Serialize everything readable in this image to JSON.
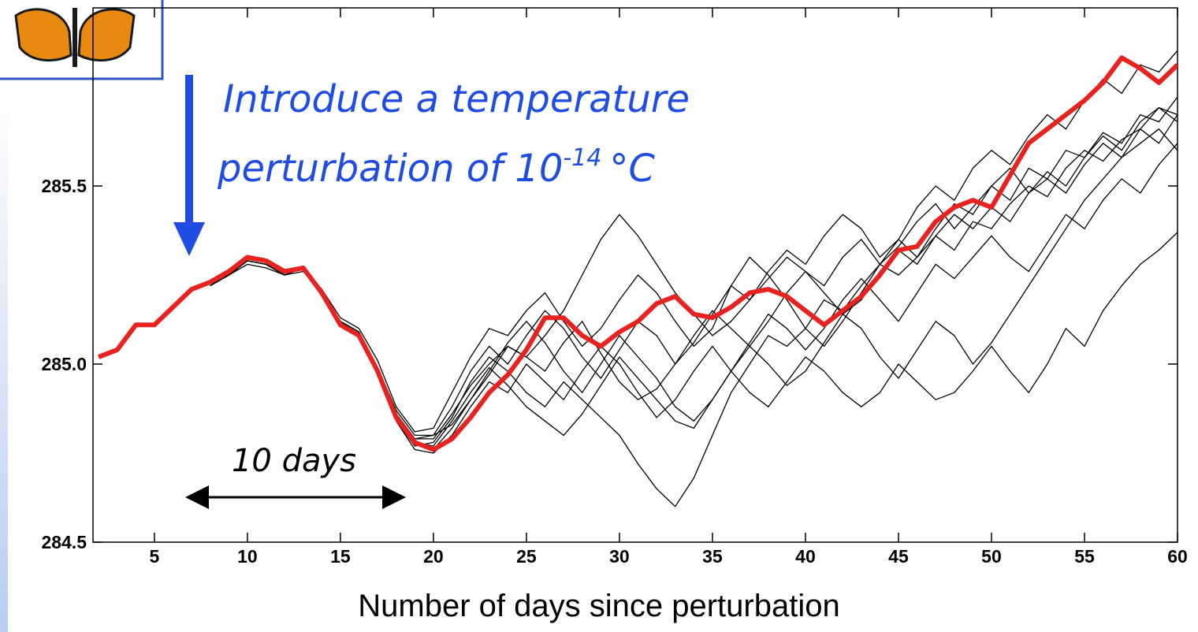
{
  "chart_data": {
    "type": "line",
    "xlabel": "Number of days since perturbation",
    "annotation": {
      "line1": "Introduce a temperature",
      "line2": "perturbation of 10",
      "superscript": "-14",
      "unit": "°C"
    },
    "span_label": "10 days",
    "xlim": [
      1.7,
      60
    ],
    "ylim": [
      284.5,
      286.0
    ],
    "xticks": [
      5,
      10,
      15,
      20,
      25,
      30,
      35,
      40,
      45,
      50,
      55,
      60
    ],
    "yticks": [
      {
        "value": 284.5,
        "label": "284.5"
      },
      {
        "value": 285,
        "label": "285.0"
      },
      {
        "value": 285.5,
        "label": "285.5"
      }
    ],
    "x": [
      2,
      3,
      4,
      5,
      6,
      7,
      8,
      9,
      10,
      11,
      12,
      13,
      14,
      15,
      16,
      17,
      18,
      19,
      20,
      21,
      22,
      23,
      24,
      25,
      26,
      27,
      28,
      29,
      30,
      31,
      32,
      33,
      34,
      35,
      36,
      37,
      38,
      39,
      40,
      41,
      42,
      43,
      44,
      45,
      46,
      47,
      48,
      49,
      50,
      51,
      52,
      53,
      54,
      55,
      56,
      57,
      58,
      59,
      60
    ],
    "series": [
      {
        "color": "#000000",
        "values": [
          null,
          null,
          null,
          null,
          null,
          null,
          285.22,
          285.25,
          285.29,
          285.28,
          285.25,
          285.27,
          285.2,
          285.12,
          285.09,
          284.99,
          284.86,
          284.79,
          284.8,
          284.83,
          284.9,
          284.97,
          285.05,
          285.02,
          284.98,
          285.06,
          285.12,
          285.03,
          284.95,
          284.9,
          284.93,
          285.0,
          285.08,
          285.15,
          285.1,
          285.05,
          285.12,
          285.2,
          285.26,
          285.22,
          285.3,
          285.35,
          285.28,
          285.33,
          285.4,
          285.45,
          285.38,
          285.44,
          285.5,
          285.55,
          285.48,
          285.52,
          285.6,
          285.58,
          285.65,
          285.62,
          285.7,
          285.68,
          285.75
        ]
      },
      {
        "color": "#000000",
        "values": [
          null,
          null,
          null,
          null,
          null,
          null,
          285.22,
          285.26,
          285.29,
          285.28,
          285.26,
          285.27,
          285.19,
          285.11,
          285.08,
          284.98,
          284.84,
          284.77,
          284.78,
          284.85,
          284.95,
          285.02,
          284.98,
          284.92,
          284.88,
          284.95,
          284.9,
          284.85,
          284.8,
          284.72,
          284.65,
          284.6,
          284.68,
          284.8,
          284.92,
          285.0,
          285.08,
          285.05,
          285.1,
          285.18,
          285.15,
          285.22,
          285.28,
          285.25,
          285.3,
          285.36,
          285.32,
          285.4,
          285.38,
          285.45,
          285.5,
          285.47,
          285.55,
          285.6,
          285.57,
          285.63,
          285.66,
          285.62,
          285.7
        ]
      },
      {
        "color": "#000000",
        "values": [
          null,
          null,
          null,
          null,
          null,
          null,
          285.22,
          285.25,
          285.28,
          285.27,
          285.25,
          285.27,
          285.21,
          285.13,
          285.1,
          285.01,
          284.88,
          284.81,
          284.82,
          284.92,
          285.02,
          285.1,
          285.08,
          285.15,
          285.2,
          285.12,
          285.05,
          285.1,
          285.18,
          285.25,
          285.2,
          285.12,
          285.05,
          285.1,
          285.22,
          285.3,
          285.25,
          285.18,
          285.1,
          285.05,
          285.12,
          285.2,
          285.28,
          285.35,
          285.3,
          285.38,
          285.45,
          285.42,
          285.5,
          285.46,
          285.55,
          285.52,
          285.48,
          285.56,
          285.62,
          285.58,
          285.66,
          285.72,
          285.68
        ]
      },
      {
        "color": "#000000",
        "values": [
          null,
          null,
          null,
          null,
          null,
          null,
          285.22,
          285.25,
          285.29,
          285.28,
          285.25,
          285.26,
          285.2,
          285.12,
          285.08,
          284.97,
          284.84,
          284.76,
          284.75,
          284.8,
          284.88,
          284.95,
          284.92,
          285.0,
          284.95,
          284.9,
          284.98,
          285.05,
          285.0,
          284.92,
          284.85,
          284.9,
          284.98,
          285.05,
          284.98,
          284.92,
          284.88,
          284.95,
          285.02,
          284.98,
          284.92,
          284.88,
          284.92,
          285.0,
          284.95,
          284.9,
          284.92,
          284.98,
          285.05,
          284.98,
          284.92,
          285.0,
          285.1,
          285.05,
          285.15,
          285.22,
          285.28,
          285.32,
          285.37
        ]
      },
      {
        "color": "#000000",
        "values": [
          null,
          null,
          null,
          null,
          null,
          null,
          285.22,
          285.25,
          285.29,
          285.28,
          285.25,
          285.27,
          285.2,
          285.12,
          285.09,
          284.99,
          284.87,
          284.8,
          284.8,
          284.88,
          284.98,
          285.05,
          285.0,
          285.08,
          285.15,
          285.1,
          285.02,
          284.96,
          285.04,
          285.12,
          285.08,
          285.0,
          285.06,
          285.14,
          285.22,
          285.18,
          285.26,
          285.32,
          285.28,
          285.36,
          285.42,
          285.38,
          285.3,
          285.35,
          285.44,
          285.5,
          285.46,
          285.55,
          285.6,
          285.56,
          285.64,
          285.7,
          285.66,
          285.74,
          285.8,
          285.76,
          285.84,
          285.82,
          285.88
        ]
      },
      {
        "color": "#000000",
        "values": [
          null,
          null,
          null,
          null,
          null,
          null,
          285.22,
          285.25,
          285.29,
          285.28,
          285.25,
          285.27,
          285.2,
          285.11,
          285.08,
          284.98,
          284.85,
          284.78,
          284.76,
          284.82,
          284.9,
          284.98,
          285.06,
          285.12,
          285.06,
          284.98,
          284.92,
          285.0,
          285.08,
          285.02,
          284.96,
          284.88,
          284.84,
          284.9,
          284.98,
          285.06,
          285.14,
          285.1,
          285.04,
          285.1,
          285.18,
          285.24,
          285.18,
          285.12,
          285.2,
          285.28,
          285.24,
          285.3,
          285.36,
          285.3,
          285.26,
          285.34,
          285.42,
          285.38,
          285.46,
          285.52,
          285.48,
          285.56,
          285.62
        ]
      },
      {
        "color": "#000000",
        "values": [
          null,
          null,
          null,
          null,
          null,
          null,
          285.22,
          285.25,
          285.29,
          285.28,
          285.25,
          285.27,
          285.2,
          285.12,
          285.09,
          284.99,
          284.86,
          284.79,
          284.79,
          284.86,
          284.94,
          285.0,
          285.05,
          285.02,
          285.08,
          285.15,
          285.25,
          285.35,
          285.42,
          285.36,
          285.28,
          285.2,
          285.14,
          285.08,
          285.12,
          285.18,
          285.24,
          285.3,
          285.26,
          285.2,
          285.14,
          285.18,
          285.26,
          285.32,
          285.28,
          285.36,
          285.42,
          285.38,
          285.44,
          285.4,
          285.48,
          285.54,
          285.5,
          285.58,
          285.64,
          285.6,
          285.68,
          285.72,
          285.7
        ]
      },
      {
        "color": "#000000",
        "values": [
          null,
          null,
          null,
          null,
          null,
          null,
          285.22,
          285.25,
          285.29,
          285.28,
          285.25,
          285.27,
          285.2,
          285.12,
          285.09,
          284.99,
          284.86,
          284.78,
          284.77,
          284.84,
          284.92,
          284.99,
          284.94,
          284.88,
          284.84,
          284.8,
          284.86,
          284.94,
          285.02,
          284.96,
          284.9,
          284.84,
          284.82,
          284.9,
          284.98,
          285.05,
          285.0,
          284.94,
          284.98,
          285.06,
          285.14,
          285.1,
          285.02,
          284.96,
          285.04,
          285.12,
          285.08,
          285.0,
          285.06,
          285.14,
          285.22,
          285.3,
          285.38,
          285.46,
          285.52,
          285.58,
          285.62,
          285.66,
          285.6
        ]
      },
      {
        "color": "#e8231f",
        "values": [
          285.02,
          285.04,
          285.11,
          285.11,
          285.16,
          285.21,
          285.23,
          285.26,
          285.3,
          285.29,
          285.26,
          285.27,
          285.2,
          285.11,
          285.08,
          284.98,
          284.85,
          284.78,
          284.76,
          284.79,
          284.85,
          284.92,
          284.97,
          285.04,
          285.13,
          285.13,
          285.08,
          285.05,
          285.09,
          285.12,
          285.17,
          285.19,
          285.14,
          285.13,
          285.16,
          285.2,
          285.21,
          285.19,
          285.15,
          285.11,
          285.15,
          285.19,
          285.25,
          285.32,
          285.33,
          285.4,
          285.44,
          285.46,
          285.44,
          285.53,
          285.62,
          285.66,
          285.7,
          285.74,
          285.79,
          285.86,
          285.83,
          285.79,
          285.84
        ]
      }
    ]
  }
}
